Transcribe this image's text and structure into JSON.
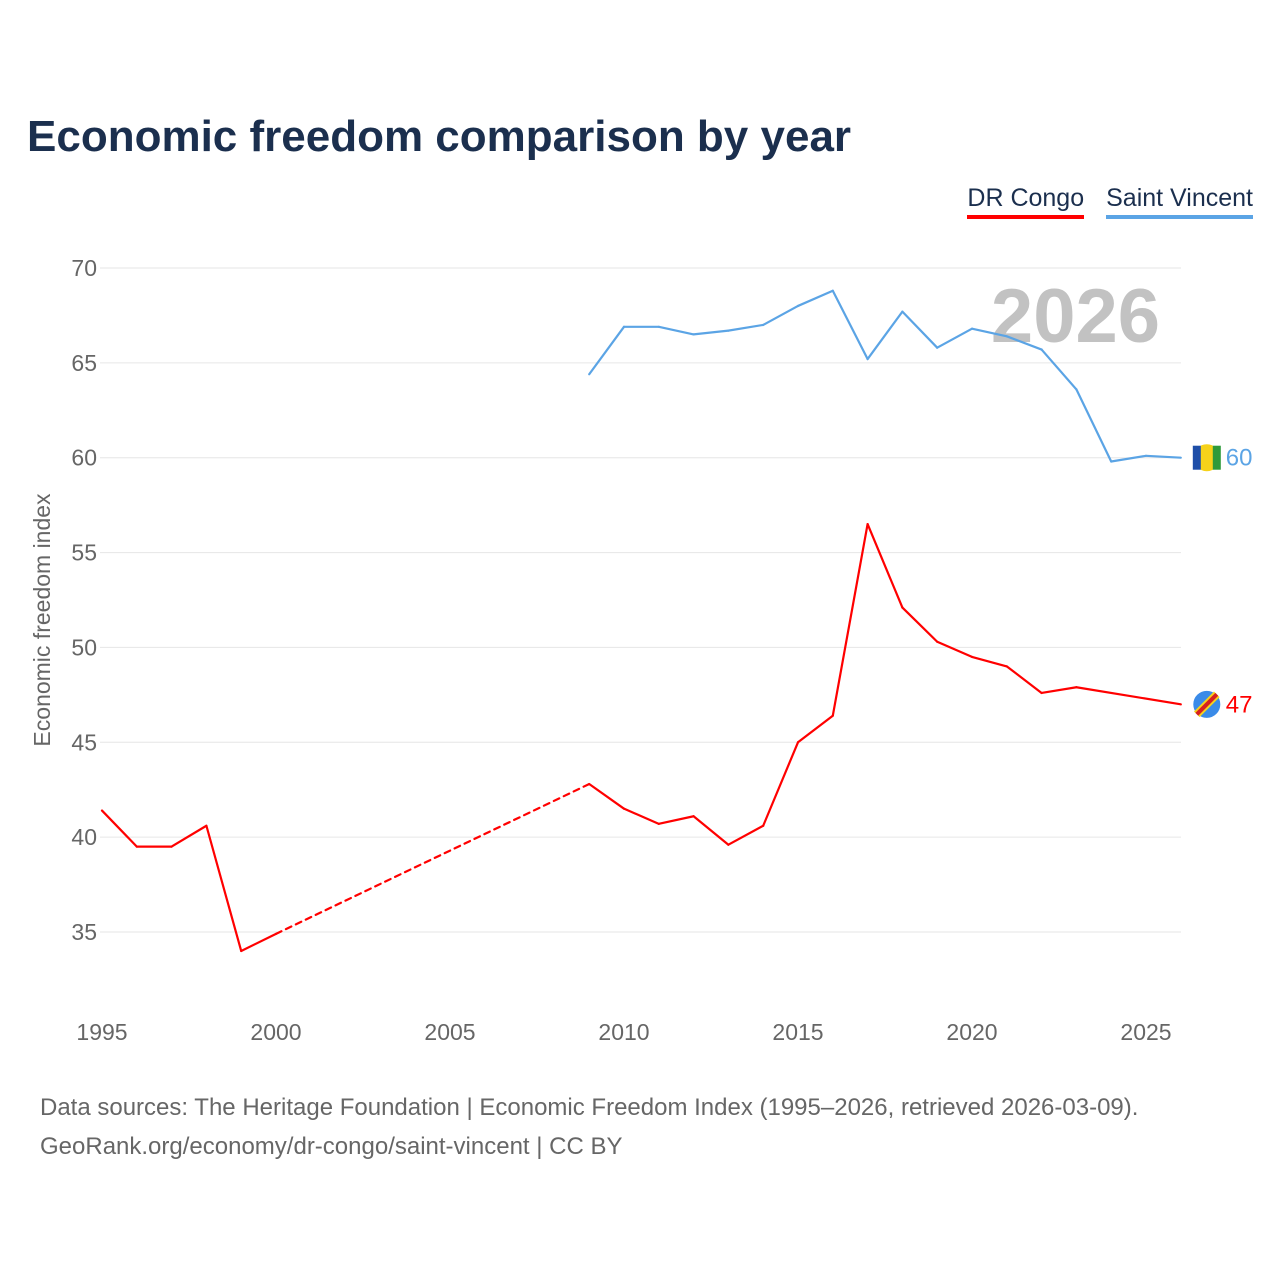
{
  "chart_data": {
    "type": "line",
    "title": "Economic freedom comparison by year",
    "ylabel": "Economic freedom index",
    "xlabel": "",
    "xlim": [
      1995,
      2026
    ],
    "ylim": [
      32,
      70
    ],
    "xticks": [
      1995,
      2000,
      2005,
      2010,
      2015,
      2020,
      2025
    ],
    "yticks": [
      35,
      40,
      45,
      50,
      55,
      60,
      65,
      70
    ],
    "grid": true,
    "year_watermark": "2026",
    "legend_position": "top-right",
    "series": [
      {
        "name": "DR Congo",
        "color": "#ff0000",
        "end_label": "47",
        "x": [
          1995,
          1996,
          1997,
          1998,
          1999,
          2000,
          2009,
          2010,
          2011,
          2012,
          2013,
          2014,
          2015,
          2016,
          2017,
          2018,
          2019,
          2020,
          2021,
          2022,
          2023,
          2026
        ],
        "y": [
          41.4,
          39.5,
          39.5,
          40.6,
          34.0,
          34.9,
          42.8,
          41.5,
          40.7,
          41.1,
          39.6,
          40.6,
          45.0,
          46.4,
          56.5,
          52.1,
          50.3,
          49.5,
          49.0,
          47.6,
          47.9,
          47.0
        ],
        "gap_after": [
          2000
        ]
      },
      {
        "name": "Saint Vincent",
        "color": "#5ba4e5",
        "end_label": "60",
        "x": [
          2009,
          2010,
          2011,
          2012,
          2013,
          2014,
          2015,
          2016,
          2017,
          2018,
          2019,
          2020,
          2021,
          2022,
          2023,
          2024,
          2025,
          2026
        ],
        "y": [
          64.4,
          66.9,
          66.9,
          66.5,
          66.7,
          67.0,
          68.0,
          68.8,
          65.2,
          67.7,
          65.8,
          66.8,
          66.4,
          65.7,
          63.6,
          59.8,
          60.1,
          60.0
        ],
        "gap_after": []
      }
    ]
  },
  "footer": {
    "line1": "Data sources: The Heritage Foundation | Economic Freedom Index (1995–2026, retrieved 2026-03-09).",
    "line2": "GeoRank.org/economy/dr-congo/saint-vincent | CC BY"
  }
}
